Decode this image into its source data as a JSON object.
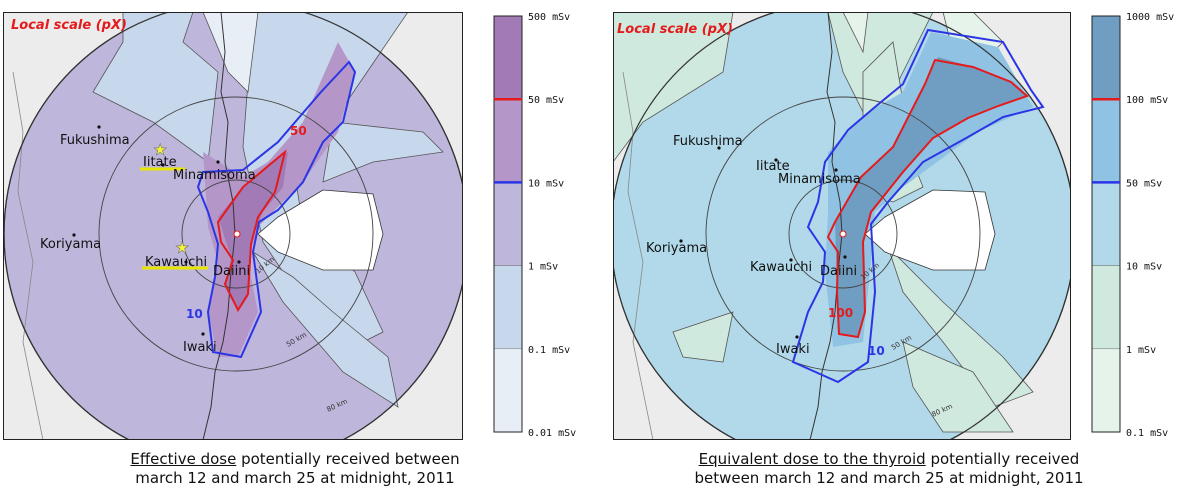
{
  "colors": {
    "left_scale": [
      "#e8eef6",
      "#c8d8ec",
      "#bfb6dc",
      "#b497c8",
      "#a27ab6"
    ],
    "right_scale": [
      "#e6f3ea",
      "#cfe9de",
      "#b2d9ea",
      "#90c3e3",
      "#6f9ec2"
    ],
    "iso_red": "#e41a1c",
    "iso_blue": "#2b35e6"
  },
  "left": {
    "scale_label": "Local scale (pX)",
    "places": {
      "fukushima": "Fukushima",
      "iitate": "Iitate",
      "minamisoma": "Minamisoma",
      "koriyama": "Koriyama",
      "kawauchi": "Kawauchi",
      "daiini": "Daiini",
      "iwaki": "Iwaki"
    },
    "ring_labels": [
      "10 km",
      "50 km",
      "80 km"
    ],
    "isoline_labels": {
      "red": "50",
      "blue": "10"
    },
    "colorbar": {
      "levels": [
        {
          "label": "500 mSv",
          "tier": 5
        },
        {
          "label": "50 mSv",
          "tier": 4
        },
        {
          "label": "10 mSv",
          "tier": 3
        },
        {
          "label": "1 mSv",
          "tier": 2
        },
        {
          "label": "0.1 mSv",
          "tier": 1
        },
        {
          "label": "0.01 mSv",
          "tier": 0
        }
      ]
    },
    "caption": {
      "underlined": "Effective dose",
      "rest_line1": " potentially received between",
      "line2": "march 12 and march 25 at midnight, 2011"
    }
  },
  "right": {
    "scale_label": "Local scale (pX)",
    "places": {
      "fukushima": "Fukushima",
      "iitate": "Iitate",
      "minamisoma": "Minamisoma",
      "koriyama": "Koriyama",
      "kawauchi": "Kawauchi",
      "daiini": "Daiini",
      "iwaki": "Iwaki"
    },
    "ring_labels": [
      "10 km",
      "50 km",
      "80 km"
    ],
    "isoline_labels": {
      "red": "100",
      "blue": "10"
    },
    "colorbar": {
      "levels": [
        {
          "label": "1000 mSv",
          "tier": 5
        },
        {
          "label": "100 mSv",
          "tier": 4
        },
        {
          "label": "50 mSv",
          "tier": 3
        },
        {
          "label": "10 mSv",
          "tier": 2
        },
        {
          "label": "1 mSv",
          "tier": 1
        },
        {
          "label": "0.1 mSv",
          "tier": 0
        }
      ]
    },
    "caption": {
      "underlined": "Equivalent dose to the thyroid",
      "rest_line1": " potentially received",
      "line2": "between march 12 and march 25 at midnight, 2011"
    }
  }
}
